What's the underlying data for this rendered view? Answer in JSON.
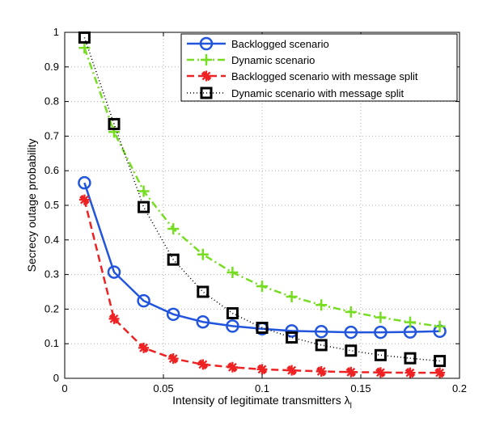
{
  "chart_data": {
    "type": "line",
    "title": "",
    "xlabel": "Intensity of legitimate transmitters λ",
    "xlabel_subscript": "l",
    "ylabel": "Secrecy outage probability",
    "xlim": [
      0,
      0.2
    ],
    "ylim": [
      0,
      1
    ],
    "xticks": [
      0,
      0.05,
      0.1,
      0.15,
      0.2
    ],
    "xtick_labels": [
      "0",
      "0.05",
      "0.1",
      "0.15",
      "0.2"
    ],
    "yticks": [
      0,
      0.1,
      0.2,
      0.3,
      0.4,
      0.5,
      0.6,
      0.7,
      0.8,
      0.9,
      1
    ],
    "ytick_labels": [
      "0",
      "0.1",
      "0.2",
      "0.3",
      "0.4",
      "0.5",
      "0.6",
      "0.7",
      "0.8",
      "0.9",
      "1"
    ],
    "grid": true,
    "legend_position": "top-right",
    "x": [
      0.01,
      0.025,
      0.04,
      0.055,
      0.07,
      0.085,
      0.1,
      0.115,
      0.13,
      0.145,
      0.16,
      0.175,
      0.19
    ],
    "series": [
      {
        "name": "Backlogged scenario",
        "color": "#2255dd",
        "line": "solid",
        "marker": "circle",
        "values": [
          0.565,
          0.307,
          0.224,
          0.185,
          0.163,
          0.151,
          0.143,
          0.137,
          0.135,
          0.133,
          0.133,
          0.134,
          0.136
        ]
      },
      {
        "name": "Dynamic scenario",
        "color": "#77dd22",
        "line": "dashdot",
        "marker": "plus",
        "values": [
          0.955,
          0.712,
          0.541,
          0.432,
          0.358,
          0.306,
          0.266,
          0.236,
          0.212,
          0.192,
          0.176,
          0.162,
          0.15
        ]
      },
      {
        "name": "Backlogged scenario with message split",
        "color": "#ee2222",
        "line": "dashed",
        "marker": "asterisk",
        "values": [
          0.516,
          0.172,
          0.088,
          0.057,
          0.04,
          0.032,
          0.026,
          0.023,
          0.02,
          0.018,
          0.017,
          0.016,
          0.016
        ]
      },
      {
        "name": "Dynamic scenario with message split",
        "color": "#000000",
        "line": "dotted",
        "marker": "square",
        "values": [
          0.985,
          0.735,
          0.495,
          0.343,
          0.25,
          0.188,
          0.146,
          0.118,
          0.096,
          0.08,
          0.067,
          0.058,
          0.05
        ]
      }
    ]
  }
}
